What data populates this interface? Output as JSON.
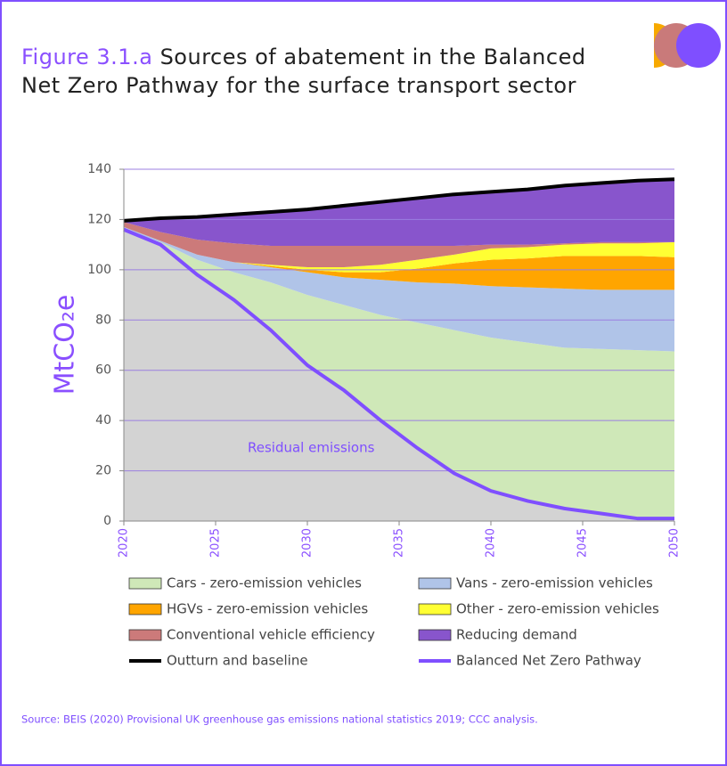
{
  "chart_data": {
    "type": "area",
    "figure": "Figure 3.1.a",
    "title": "Sources of abatement in the Balanced Net Zero Pathway for the surface transport sector",
    "y_label": "MtCO₂e",
    "annotation": "Residual emissions",
    "source": "Source: BEIS (2020) Provisional UK greenhouse gas emissions national statistics 2019; CCC analysis.",
    "x": [
      2020,
      2022,
      2024,
      2026,
      2028,
      2030,
      2032,
      2034,
      2036,
      2038,
      2040,
      2042,
      2044,
      2046,
      2048,
      2050
    ],
    "xlim": [
      2020,
      2050
    ],
    "xticks": [
      2020,
      2025,
      2030,
      2035,
      2040,
      2045,
      2050
    ],
    "ylim": [
      0,
      140
    ],
    "yticks": [
      0,
      20,
      40,
      60,
      80,
      100,
      120,
      140
    ],
    "grid": true,
    "series": [
      {
        "name": "Cars - zero-emission vehicles",
        "color": "#cfe8b8",
        "values": [
          0,
          1,
          6,
          11,
          19,
          28,
          34,
          42,
          50,
          57,
          61,
          63,
          64,
          65.5,
          67,
          66.5
        ]
      },
      {
        "name": "Vans - zero-emission vehicles",
        "color": "#b0c4e8",
        "values": [
          1,
          0.5,
          2,
          4,
          6,
          9,
          11,
          14,
          16,
          18.5,
          20.5,
          22,
          23.5,
          23.5,
          24,
          24.5
        ]
      },
      {
        "name": "HGVs - zero-emission vehicles",
        "color": "#ffa500",
        "values": [
          0,
          0,
          0,
          0,
          0.5,
          1,
          2,
          3,
          5.5,
          8,
          10.5,
          11.5,
          13,
          13.5,
          13.5,
          13
        ]
      },
      {
        "name": "Other - zero-emission vehicles",
        "color": "#ffff33",
        "values": [
          0,
          0,
          0,
          0,
          0.5,
          1,
          2,
          3,
          3.5,
          3.5,
          4.5,
          4.5,
          4.5,
          5,
          5,
          6
        ]
      },
      {
        "name": "Conventional vehicle efficiency",
        "color": "#cc7a7a",
        "values": [
          2,
          3.5,
          6,
          7.5,
          7.5,
          8.5,
          8.5,
          7.5,
          5.5,
          3.5,
          1.5,
          1,
          0.5,
          0.5,
          0.5,
          0
        ]
      },
      {
        "name": "Reducing demand",
        "color": "#8855cc",
        "values": [
          0.5,
          5.5,
          9,
          11.5,
          13.5,
          14.5,
          16,
          17.5,
          19,
          20.5,
          21,
          22,
          23,
          23.5,
          24.5,
          25
        ]
      },
      {
        "name": "Outturn and baseline",
        "color": "#000000",
        "type": "line",
        "values": [
          119.5,
          120.5,
          121,
          122,
          123,
          124,
          125.5,
          127,
          128.5,
          130,
          131,
          132,
          133.5,
          134.5,
          135.5,
          136
        ]
      },
      {
        "name": "Balanced Net Zero Pathway",
        "color": "#7f4fff",
        "type": "line",
        "fill": "#d3d3d3",
        "values": [
          116,
          110,
          98,
          88,
          76,
          62,
          52,
          40,
          29,
          19,
          12,
          8,
          5,
          3,
          1,
          1
        ]
      }
    ]
  }
}
